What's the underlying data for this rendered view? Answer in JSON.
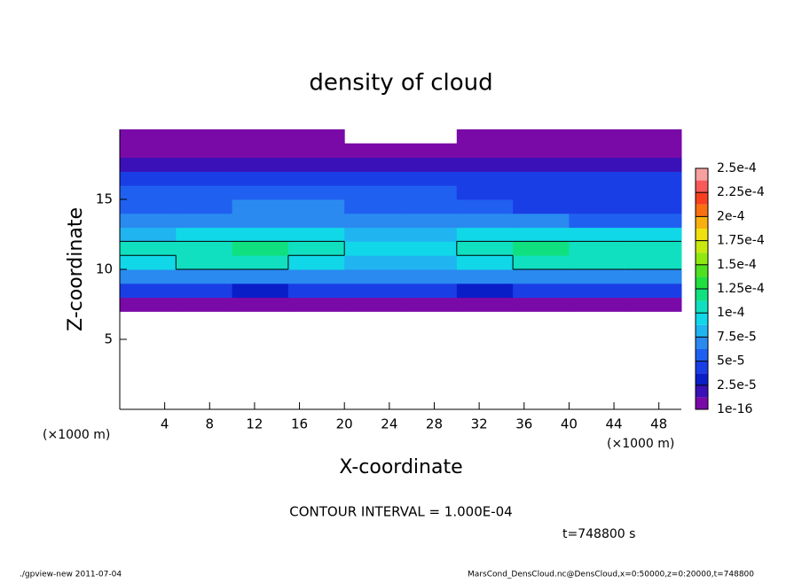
{
  "chart_data": {
    "type": "heatmap",
    "title": "density of cloud",
    "xlabel": "X-coordinate",
    "ylabel": "Z-coordinate",
    "x_unit_label": "(×1000 m)",
    "annotation": "CONTOUR INTERVAL = 1.000E-04",
    "time_label": "t=748800 s",
    "footer_left": "./gpview-new   2011-07-04",
    "footer_right": "MarsCond_DensCloud.nc@DensCloud,x=0:50000,z=0:20000,t=748800",
    "xlim": [
      0,
      50
    ],
    "ylim": [
      0,
      20
    ],
    "xticks": [
      4,
      8,
      12,
      16,
      20,
      24,
      28,
      32,
      36,
      40,
      44,
      48
    ],
    "yticks": [
      5,
      10,
      15
    ],
    "x_bins": [
      0,
      5,
      10,
      15,
      20,
      25,
      30,
      35,
      40,
      45,
      50
    ],
    "z_bins": [
      7,
      8,
      9,
      10,
      11,
      12,
      13,
      14,
      15,
      16,
      17,
      18,
      19,
      20
    ],
    "values": [
      [
        1e-05,
        1e-05,
        1e-05,
        1e-05,
        1e-05,
        1e-05,
        1e-05,
        1e-05,
        1e-05,
        1e-05
      ],
      [
        4e-05,
        4.5e-05,
        3.5e-05,
        4e-05,
        4.5e-05,
        4e-05,
        3.5e-05,
        4e-05,
        4.5e-05,
        4e-05
      ],
      [
        7e-05,
        7.5e-05,
        7e-05,
        7e-05,
        7.5e-05,
        7e-05,
        7e-05,
        7.5e-05,
        7e-05,
        7.5e-05
      ],
      [
        9.5e-05,
        0.000105,
        0.000105,
        9e-05,
        8.5e-05,
        8.5e-05,
        9.5e-05,
        0.000105,
        0.0001,
        0.000105
      ],
      [
        0.0001,
        0.00011,
        0.000115,
        0.0001,
        9e-05,
        9e-05,
        0.000105,
        0.000115,
        0.00011,
        0.00011
      ],
      [
        8e-05,
        9.5e-05,
        9.5e-05,
        9e-05,
        8e-05,
        8e-05,
        9e-05,
        9.5e-05,
        9.5e-05,
        9e-05
      ],
      [
        6.5e-05,
        7e-05,
        7e-05,
        7e-05,
        7e-05,
        6.5e-05,
        6.5e-05,
        6.5e-05,
        6e-05,
        6e-05
      ],
      [
        6e-05,
        6e-05,
        6.5e-05,
        6.5e-05,
        6e-05,
        5.5e-05,
        5e-05,
        4.5e-05,
        4.5e-05,
        4.5e-05
      ],
      [
        5e-05,
        5e-05,
        5.5e-05,
        5.5e-05,
        5e-05,
        5e-05,
        4.5e-05,
        4e-05,
        4e-05,
        4e-05
      ],
      [
        4e-05,
        4e-05,
        4e-05,
        4e-05,
        4e-05,
        4e-05,
        4e-05,
        4e-05,
        4e-05,
        4e-05
      ],
      [
        2e-05,
        2e-05,
        2e-05,
        2e-05,
        2e-05,
        2e-05,
        2e-05,
        2e-05,
        2e-05,
        2e-05
      ],
      [
        1e-05,
        1e-05,
        1e-05,
        1e-05,
        1e-05,
        1e-05,
        1e-05,
        1e-05,
        1e-05,
        1e-05
      ],
      [
        5e-06,
        5e-06,
        5e-06,
        5e-06,
        null,
        null,
        5e-06,
        5e-06,
        5e-06,
        5e-06
      ]
    ],
    "contour_level": 0.0001,
    "colorbar_ticks": [
      {
        "value": 1e-16,
        "label": "1e-16"
      },
      {
        "value": 2.5e-05,
        "label": "2.5e-5"
      },
      {
        "value": 5e-05,
        "label": "5e-5"
      },
      {
        "value": 7.5e-05,
        "label": "7.5e-5"
      },
      {
        "value": 0.0001,
        "label": "1e-4"
      },
      {
        "value": 0.000125,
        "label": "1.25e-4"
      },
      {
        "value": 0.00015,
        "label": "1.5e-4"
      },
      {
        "value": 0.000175,
        "label": "1.75e-4"
      },
      {
        "value": 0.0002,
        "label": "2e-4"
      },
      {
        "value": 0.000225,
        "label": "2.25e-4"
      },
      {
        "value": 0.00025,
        "label": "2.5e-4"
      }
    ],
    "colors": [
      "#7a0aa8",
      "#3a10b8",
      "#0a1ec8",
      "#1a3ee6",
      "#2060f0",
      "#2a8af0",
      "#20b4f0",
      "#10d8e8",
      "#10e0c0",
      "#10e080",
      "#20e040",
      "#50e020",
      "#90e810",
      "#c8e810",
      "#f0e010",
      "#f8b010",
      "#f87010",
      "#f84020",
      "#f85a5a",
      "#f8a0a0"
    ]
  }
}
